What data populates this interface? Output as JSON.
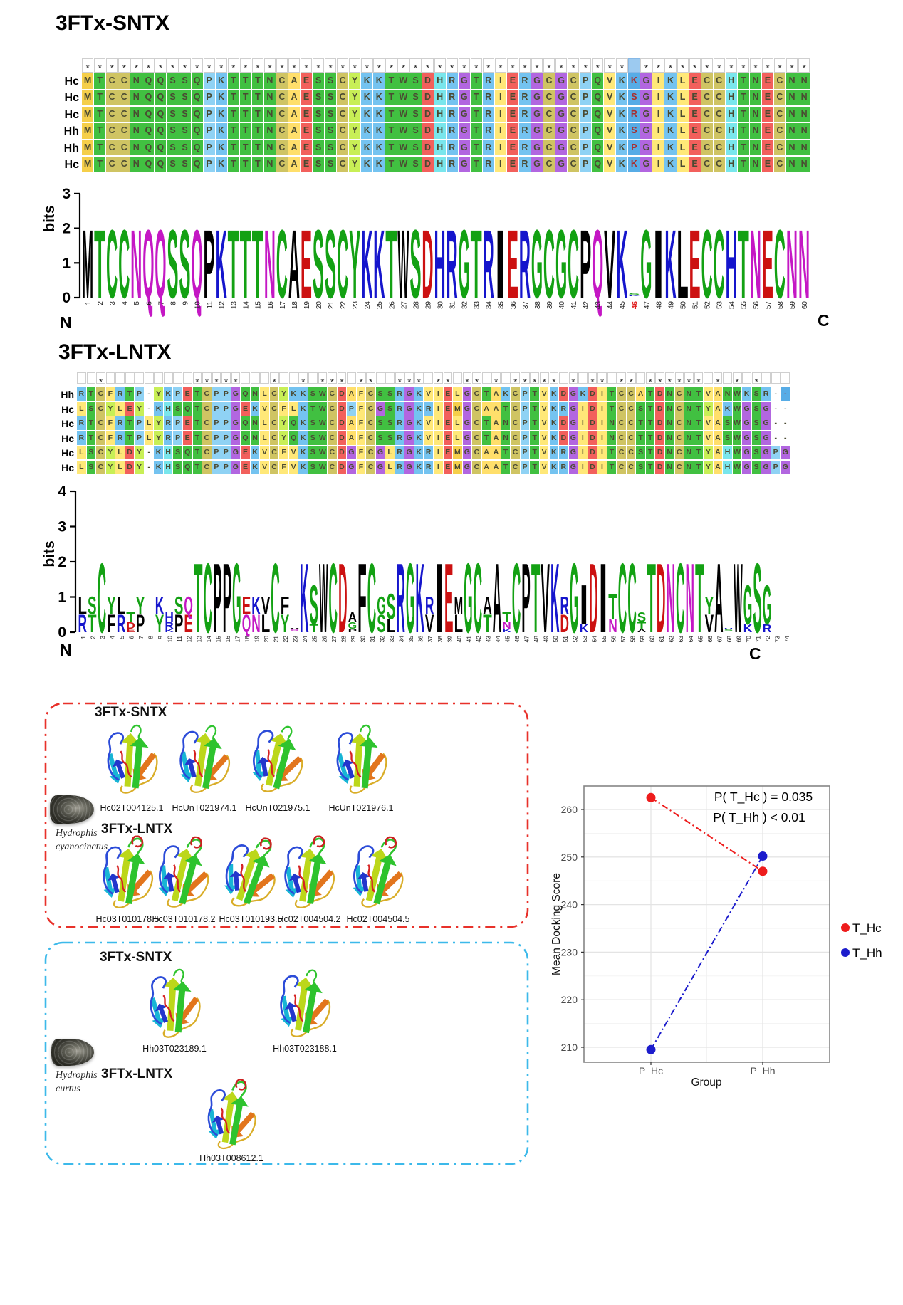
{
  "sntx": {
    "title": "3FTx-SNTX",
    "alignment": {
      "conservation_symbol": "*",
      "highlight_column": 46,
      "rows": [
        {
          "label": "Hc",
          "seq": "MTCCNQQSSQPKTTTNCAESSCYKKTWSDHRGTRIERGCGCPQVKKGIKLECCHTNECNN"
        },
        {
          "label": "Hc",
          "seq": "MTCCNQQSSQPKTTTNCAESSCYKKTWSDHRGTRIERGCGCPQVKSGIKLECCHTNECNN"
        },
        {
          "label": "Hc",
          "seq": "MTCCNQQSSQPKTTTNCAESSCYKKTWSDHRGTRIERGCGCPQVKRGIKLECCHTNECNN"
        },
        {
          "label": "Hh",
          "seq": "MTCCNQQSSQPKTTTNCAESSCYKKTWSDHRGTRIERGCGCPQVKSGIKLECCHTNECNN"
        },
        {
          "label": "Hh",
          "seq": "MTCCNQQSSQPKTTTNCAESSCYKKTWSDHRGTRIERGCGCPQVKPGIKLECCHTNECNN"
        },
        {
          "label": "Hc",
          "seq": "MTCCNQQSSQPKTTTNCAESSCYKKTWSDHRGTRIERGCGCPQVKKGIKLECCHTNECNN"
        }
      ]
    },
    "logo": {
      "ylabel": "bits",
      "yticks": [
        0,
        1,
        2,
        3
      ],
      "n_terminus": "N",
      "c_terminus": "C",
      "red_position": 46
    }
  },
  "lntx": {
    "title": "3FTx-LNTX",
    "alignment": {
      "conservation_symbol": "*",
      "highlight_cell": {
        "row": 1,
        "column": 74
      },
      "rows": [
        {
          "label": "Hh",
          "seq": "RTCFRTP-YKPETCPPGQNLCYKKSWCDAFCSSRGKVIELGCTAKCPTVKDGKDITCCATDNCNTVANWKSR--"
        },
        {
          "label": "Hc",
          "seq": "LSCYLEY-KHSQTCPPGEKVCFLKTWCDPFCGSRGKRIEMGCAATCPTVKRGIDITCCSTDNCNTYAKWGSG--"
        },
        {
          "label": "Hc",
          "seq": "RTCFRTPLYRPETCPPGQNLCYQKSWCDAFCSSRGKVIELGCTANCPTVKDGIDINCCTTDNCNTVASWGSG--"
        },
        {
          "label": "Hc",
          "seq": "RTCFRTPLYRPETCPPGQNLCYQKSWCDAFCSSRGKVIELGCTANCPTVKDGIDINCCTTDNCNTVASWGSG--"
        },
        {
          "label": "Hc",
          "seq": "LSCYLDY-KHSQTCPPGEKVCFVKSWCDGFCGLRGKRIEMGCAATCPTVKRGIDITCCSTDNCNTYAHWGSGPG"
        },
        {
          "label": "Hc",
          "seq": "LSCYLDY-KHSQTCPPGEKVCFVKSWCDGFCGLRGKRIEMGCAATCPTVKRGIDITCCSTDNCNTYAHWGSGPG"
        }
      ]
    },
    "logo": {
      "ylabel": "bits",
      "yticks": [
        0,
        1,
        2,
        3,
        4
      ],
      "n_terminus": "N",
      "c_terminus": "C",
      "red_position": null
    }
  },
  "aa_colors": {
    "A": "#ffdf6b",
    "C": "#cfc463",
    "D": "#f2605c",
    "E": "#f2605c",
    "F": "#ffe878",
    "G": "#b266e0",
    "H": "#79e6ec",
    "I": "#ffe878",
    "K": "#74c3f0",
    "L": "#ffe878",
    "M": "#f5cf4a",
    "N": "#41c041",
    "P": "#8fd2f4",
    "Q": "#41c041",
    "R": "#74c3f0",
    "S": "#41c041",
    "T": "#41c041",
    "V": "#ffe878",
    "W": "#41c041",
    "Y": "#c8ef56",
    "-": "#ffffff"
  },
  "highlight_colors": {
    "cell_bg": "#57ace6",
    "cell_text": "#a82f2f",
    "header_bg": "#9ccaf0"
  },
  "logo_palette": {
    "GSTYC": "#13a113",
    "QN": "#c417c4",
    "KRH": "#1515cc",
    "DE": "#cc1111",
    "AVLIPWFM": "#000000"
  },
  "structure_panels": [
    {
      "species": "Hydrophis cyanocinctus",
      "border_color": "#e8312a",
      "groups": [
        {
          "title": "3FTx-SNTX",
          "structures": [
            "Hc02T004125.1",
            "HcUnT021974.1",
            "HcUnT021975.1",
            "HcUnT021976.1"
          ]
        },
        {
          "title": "3FTx-LNTX",
          "structures": [
            "Hc03T010178.5",
            "Hc03T010178.2",
            "Hc03T010193.5",
            "Hc02T004504.2",
            "Hc02T004504.5"
          ]
        }
      ]
    },
    {
      "species": "Hydrophis curtus",
      "border_color": "#3cb9ea",
      "groups": [
        {
          "title": "3FTx-SNTX",
          "structures": [
            "Hh03T023189.1",
            "Hh03T023188.1"
          ]
        },
        {
          "title": "3FTx-LNTX",
          "structures": [
            "Hh03T008612.1"
          ]
        }
      ]
    }
  ],
  "chart_data": {
    "type": "line",
    "x_categories": [
      "P_Hc",
      "P_Hh"
    ],
    "series": [
      {
        "name": "T_Hc",
        "color": "#ee1c1c",
        "values": [
          262.5,
          247.0
        ]
      },
      {
        "name": "T_Hh",
        "color": "#1c1ccc",
        "values": [
          209.5,
          250.2
        ]
      }
    ],
    "xlabel": "Group",
    "ylabel": "Mean Docking Score",
    "ylim": [
      206,
      265
    ],
    "yticks": [
      210,
      220,
      230,
      240,
      250,
      260
    ],
    "grid": true,
    "legend_position": "right",
    "line_style": "dash-dot",
    "annotations": [
      {
        "text": "P( T_Hc ) = 0.035"
      },
      {
        "text": "P( T_Hh ) < 0.01"
      }
    ]
  }
}
